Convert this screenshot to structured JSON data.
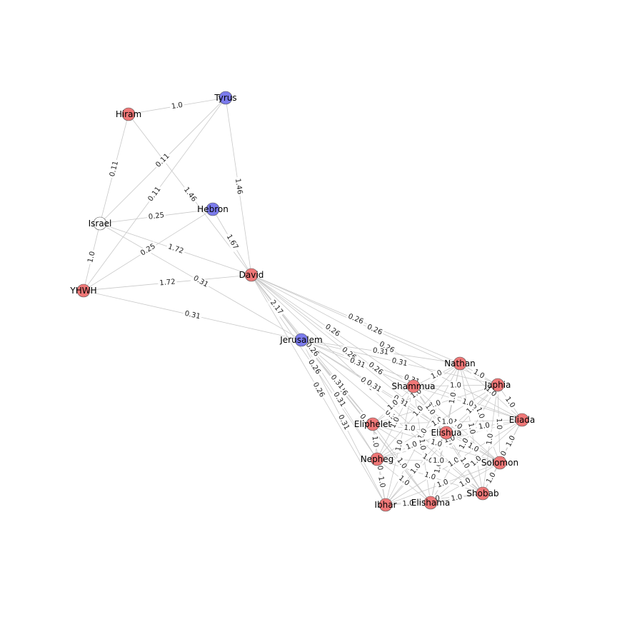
{
  "colors": {
    "person": "#ef7777",
    "place": "#7b7bec",
    "group": "#ffffff",
    "edge": "#c8c8c8"
  },
  "nodes": [
    {
      "id": "Tyrus",
      "label": "Tyrus",
      "type": "place"
    },
    {
      "id": "Hiram",
      "label": "Hiram",
      "type": "person"
    },
    {
      "id": "Hebron",
      "label": "Hebron",
      "type": "place"
    },
    {
      "id": "Israel",
      "label": "Israel",
      "type": "group"
    },
    {
      "id": "David",
      "label": "David",
      "type": "person"
    },
    {
      "id": "YHWH",
      "label": "YHWH",
      "type": "person"
    },
    {
      "id": "Jerusalem",
      "label": "Jerusalem",
      "type": "place"
    },
    {
      "id": "Nathan",
      "label": "Nathan",
      "type": "person"
    },
    {
      "id": "Japhia",
      "label": "Japhia",
      "type": "person"
    },
    {
      "id": "Shammua",
      "label": "Shammua",
      "type": "person"
    },
    {
      "id": "Eliada",
      "label": "Eliada",
      "type": "person"
    },
    {
      "id": "Eliphelet",
      "label": "Eliphelet",
      "type": "person"
    },
    {
      "id": "Elishua",
      "label": "Elishua",
      "type": "person"
    },
    {
      "id": "Nepheg",
      "label": "Nepheg",
      "type": "person"
    },
    {
      "id": "Solomon",
      "label": "Solomon",
      "type": "person"
    },
    {
      "id": "Shobab",
      "label": "Shobab",
      "type": "person"
    },
    {
      "id": "Ibhar",
      "label": "Ibhar",
      "type": "person"
    },
    {
      "id": "Elishama",
      "label": "Elishama",
      "type": "person"
    }
  ],
  "edges": [
    {
      "source": "Hiram",
      "target": "Tyrus",
      "weight": "1.0"
    },
    {
      "source": "Hiram",
      "target": "Israel",
      "weight": "0.11"
    },
    {
      "source": "Hiram",
      "target": "David",
      "weight": "1.46"
    },
    {
      "source": "Tyrus",
      "target": "Israel",
      "weight": "0.11"
    },
    {
      "source": "Tyrus",
      "target": "YHWH",
      "weight": "0.11"
    },
    {
      "source": "Tyrus",
      "target": "David",
      "weight": "1.46"
    },
    {
      "source": "Israel",
      "target": "Hebron",
      "weight": "0.25"
    },
    {
      "source": "Israel",
      "target": "YHWH",
      "weight": "1.0"
    },
    {
      "source": "Israel",
      "target": "David",
      "weight": "1.72"
    },
    {
      "source": "Israel",
      "target": "Jerusalem",
      "weight": "0.31"
    },
    {
      "source": "YHWH",
      "target": "Hebron",
      "weight": "0.25"
    },
    {
      "source": "YHWH",
      "target": "David",
      "weight": "1.72"
    },
    {
      "source": "YHWH",
      "target": "Jerusalem",
      "weight": "0.31"
    },
    {
      "source": "Hebron",
      "target": "David",
      "weight": "1.67"
    },
    {
      "source": "David",
      "target": "Jerusalem",
      "weight": "2.17"
    },
    {
      "source": "David",
      "target": "Nathan",
      "weight": "0.26"
    },
    {
      "source": "David",
      "target": "Japhia",
      "weight": "0.26"
    },
    {
      "source": "David",
      "target": "Eliada",
      "weight": "0.26"
    },
    {
      "source": "David",
      "target": "Shammua",
      "weight": "0.26"
    },
    {
      "source": "David",
      "target": "Eliphelet",
      "weight": "0.26"
    },
    {
      "source": "David",
      "target": "Elishua",
      "weight": "0.26"
    },
    {
      "source": "David",
      "target": "Nepheg",
      "weight": "0.26"
    },
    {
      "source": "David",
      "target": "Solomon",
      "weight": "0.26"
    },
    {
      "source": "David",
      "target": "Shobab",
      "weight": "0.26"
    },
    {
      "source": "David",
      "target": "Ibhar",
      "weight": "0.26"
    },
    {
      "source": "David",
      "target": "Elishama",
      "weight": "0.26"
    },
    {
      "source": "Jerusalem",
      "target": "Nathan",
      "weight": "0.31"
    },
    {
      "source": "Jerusalem",
      "target": "Japhia",
      "weight": "0.31"
    },
    {
      "source": "Jerusalem",
      "target": "Eliada",
      "weight": "0.31"
    },
    {
      "source": "Jerusalem",
      "target": "Shammua",
      "weight": "0.31"
    },
    {
      "source": "Jerusalem",
      "target": "Eliphelet",
      "weight": "0.31"
    },
    {
      "source": "Jerusalem",
      "target": "Elishua",
      "weight": "0.31"
    },
    {
      "source": "Jerusalem",
      "target": "Nepheg",
      "weight": "0.31"
    },
    {
      "source": "Jerusalem",
      "target": "Solomon",
      "weight": "0.31"
    },
    {
      "source": "Jerusalem",
      "target": "Shobab",
      "weight": "0.31"
    },
    {
      "source": "Jerusalem",
      "target": "Ibhar",
      "weight": "0.31"
    },
    {
      "source": "Jerusalem",
      "target": "Elishama",
      "weight": "0.31"
    },
    {
      "source": "Nathan",
      "target": "Japhia",
      "weight": "1.0"
    },
    {
      "source": "Nathan",
      "target": "Shammua",
      "weight": "1.0"
    },
    {
      "source": "Nathan",
      "target": "Eliada",
      "weight": "1.0"
    },
    {
      "source": "Nathan",
      "target": "Eliphelet",
      "weight": "1.0"
    },
    {
      "source": "Nathan",
      "target": "Elishua",
      "weight": "1.0"
    },
    {
      "source": "Nathan",
      "target": "Nepheg",
      "weight": "1.0"
    },
    {
      "source": "Nathan",
      "target": "Solomon",
      "weight": "1.0"
    },
    {
      "source": "Nathan",
      "target": "Shobab",
      "weight": "1.0"
    },
    {
      "source": "Nathan",
      "target": "Ibhar",
      "weight": "1.0"
    },
    {
      "source": "Nathan",
      "target": "Elishama",
      "weight": "1.0"
    },
    {
      "source": "Japhia",
      "target": "Shammua",
      "weight": "1.0"
    },
    {
      "source": "Japhia",
      "target": "Eliada",
      "weight": "1.0"
    },
    {
      "source": "Japhia",
      "target": "Eliphelet",
      "weight": "1.0"
    },
    {
      "source": "Japhia",
      "target": "Elishua",
      "weight": "1.0"
    },
    {
      "source": "Japhia",
      "target": "Nepheg",
      "weight": "1.0"
    },
    {
      "source": "Japhia",
      "target": "Solomon",
      "weight": "1.0"
    },
    {
      "source": "Japhia",
      "target": "Shobab",
      "weight": "1.0"
    },
    {
      "source": "Japhia",
      "target": "Ibhar",
      "weight": "1.0"
    },
    {
      "source": "Japhia",
      "target": "Elishama",
      "weight": "1.0"
    },
    {
      "source": "Shammua",
      "target": "Eliada",
      "weight": "1.0"
    },
    {
      "source": "Shammua",
      "target": "Eliphelet",
      "weight": "1.0"
    },
    {
      "source": "Shammua",
      "target": "Elishua",
      "weight": "1.0"
    },
    {
      "source": "Shammua",
      "target": "Nepheg",
      "weight": "1.0"
    },
    {
      "source": "Shammua",
      "target": "Solomon",
      "weight": "1.0"
    },
    {
      "source": "Shammua",
      "target": "Shobab",
      "weight": "1.0"
    },
    {
      "source": "Shammua",
      "target": "Ibhar",
      "weight": "1.0"
    },
    {
      "source": "Shammua",
      "target": "Elishama",
      "weight": "1.0"
    },
    {
      "source": "Eliada",
      "target": "Eliphelet",
      "weight": "1.0"
    },
    {
      "source": "Eliada",
      "target": "Elishua",
      "weight": "1.0"
    },
    {
      "source": "Eliada",
      "target": "Nepheg",
      "weight": "1.0"
    },
    {
      "source": "Eliada",
      "target": "Solomon",
      "weight": "1.0"
    },
    {
      "source": "Eliada",
      "target": "Shobab",
      "weight": "1.0"
    },
    {
      "source": "Eliada",
      "target": "Ibhar",
      "weight": "1.0"
    },
    {
      "source": "Eliada",
      "target": "Elishama",
      "weight": "1.0"
    },
    {
      "source": "Eliphelet",
      "target": "Elishua",
      "weight": "1.0"
    },
    {
      "source": "Eliphelet",
      "target": "Nepheg",
      "weight": "1.0"
    },
    {
      "source": "Eliphelet",
      "target": "Solomon",
      "weight": "1.0"
    },
    {
      "source": "Eliphelet",
      "target": "Shobab",
      "weight": "1.0"
    },
    {
      "source": "Eliphelet",
      "target": "Ibhar",
      "weight": "1.0"
    },
    {
      "source": "Eliphelet",
      "target": "Elishama",
      "weight": "1.0"
    },
    {
      "source": "Elishua",
      "target": "Nepheg",
      "weight": "1.0"
    },
    {
      "source": "Elishua",
      "target": "Solomon",
      "weight": "1.0"
    },
    {
      "source": "Elishua",
      "target": "Shobab",
      "weight": "1.0"
    },
    {
      "source": "Elishua",
      "target": "Ibhar",
      "weight": "1.0"
    },
    {
      "source": "Elishua",
      "target": "Elishama",
      "weight": "1.0"
    },
    {
      "source": "Nepheg",
      "target": "Solomon",
      "weight": "1.0"
    },
    {
      "source": "Nepheg",
      "target": "Shobab",
      "weight": "1.0"
    },
    {
      "source": "Nepheg",
      "target": "Ibhar",
      "weight": "1.0"
    },
    {
      "source": "Nepheg",
      "target": "Elishama",
      "weight": "1.0"
    },
    {
      "source": "Solomon",
      "target": "Shobab",
      "weight": "1.0"
    },
    {
      "source": "Solomon",
      "target": "Ibhar",
      "weight": "1.0"
    },
    {
      "source": "Solomon",
      "target": "Elishama",
      "weight": "1.0"
    },
    {
      "source": "Shobab",
      "target": "Ibhar",
      "weight": "1.0"
    },
    {
      "source": "Shobab",
      "target": "Elishama",
      "weight": "1.0"
    },
    {
      "source": "Ibhar",
      "target": "Elishama",
      "weight": "1.0"
    }
  ]
}
